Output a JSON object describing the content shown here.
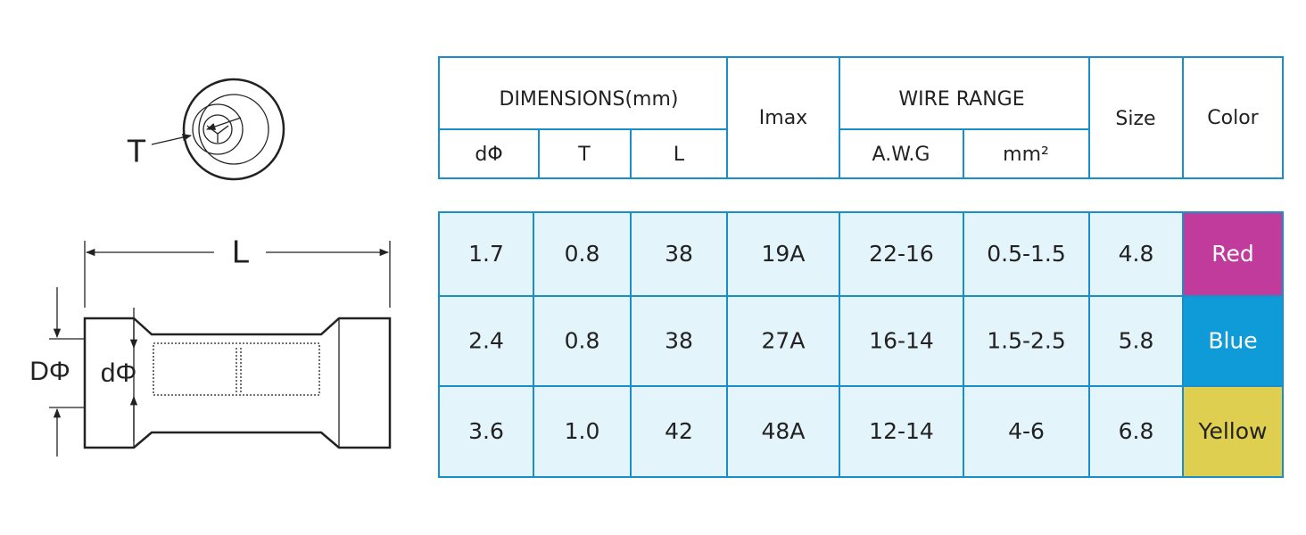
{
  "diagram": {
    "t": "T",
    "l": "L",
    "outer_d": "DΦ",
    "inner_d": "dΦ"
  },
  "header": {
    "dimensions": "DIMENSIONS(mm)",
    "imax": "Imax",
    "wire_range": "WIRE RANGE",
    "size": "Size",
    "color": "Color",
    "sub": [
      "dΦ",
      "T",
      "L",
      "A.W.G",
      "mm²"
    ]
  },
  "table": {
    "rows": [
      [
        "1.7",
        "0.8",
        "38",
        "19A",
        "22-16",
        "0.5-1.5",
        "4.8",
        "Red"
      ],
      [
        "2.4",
        "0.8",
        "38",
        "27A",
        "16-14",
        "1.5-2.5",
        "5.8",
        "Blue"
      ],
      [
        "3.6",
        "1.0",
        "42",
        "48A",
        "12-14",
        "4-6",
        "6.8",
        "Yellow"
      ]
    ]
  }
}
